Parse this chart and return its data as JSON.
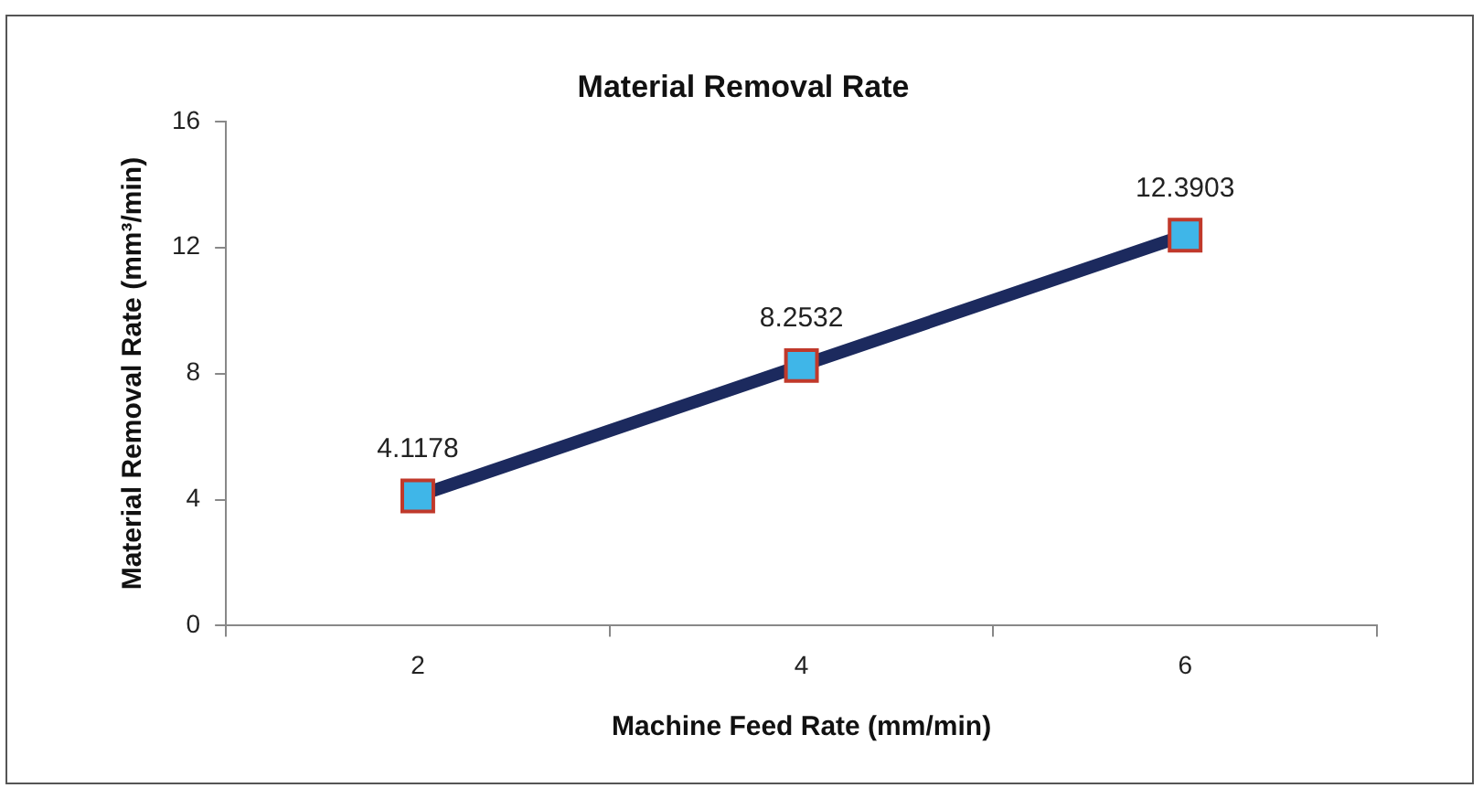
{
  "chart_data": {
    "type": "line",
    "title": "Material Removal Rate",
    "xlabel": "Machine Feed Rate (mm/min)",
    "ylabel": "Material Removal Rate (mm³/min)",
    "categories": [
      "2",
      "4",
      "6"
    ],
    "series": [
      {
        "color": "#1c2a5e",
        "colors": [
          "#3fb6e8",
          "#3fb6e8",
          "#3fb6e8"
        ],
        "values": [
          4.1178,
          8.2532,
          12.3903
        ]
      }
    ],
    "ylim": [
      0,
      16
    ],
    "yticks": [
      0,
      4,
      8,
      12,
      16
    ],
    "grid": false,
    "legend": false,
    "marker": "square",
    "line_style": "solid",
    "data_labels": true
  }
}
